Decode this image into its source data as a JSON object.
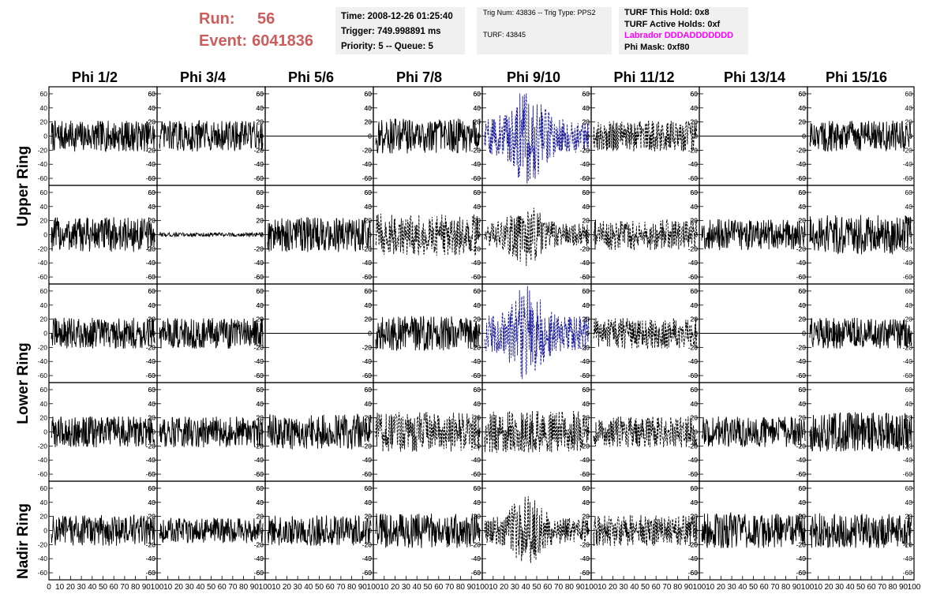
{
  "header": {
    "run_label": "Run:",
    "run_value": "56",
    "event_label": "Event:",
    "event_value": "6041836"
  },
  "info_box_1": {
    "time": "Time: 2008-12-26 01:25:40",
    "trigger": "Trigger: 749.998891 ms",
    "priority": "Priority: 5 -- Queue: 5"
  },
  "info_box_2": {
    "trig": "Trig Num: 43836 -- Trig Type: PPS2",
    "turf": "TURF: 43845"
  },
  "info_box_3": {
    "this_hold": "TURF This Hold: 0x8",
    "active_holds": "TURF Active Holds: 0xf",
    "labrador": "Labrador DDDADDDDDDD",
    "phi_mask": "Phi Mask: 0xf80"
  },
  "colors": {
    "run_text": "#cd5c5c",
    "labrador_text": "#ff00ff",
    "info_bg": "#f0f0f0",
    "trace_solid": "#000000",
    "trace_blue": "#1a1a9c"
  },
  "chart_data": {
    "type": "line",
    "grid": false,
    "columns": [
      "Phi 1/2",
      "Phi 3/4",
      "Phi 5/6",
      "Phi 7/8",
      "Phi 9/10",
      "Phi 11/12",
      "Phi 13/14",
      "Phi 15/16"
    ],
    "rows": [
      "Upper Ring",
      "Upper Ring",
      "Lower Ring",
      "Lower Ring",
      "Nadir Ring"
    ],
    "row_labels": [
      "Upper Ring",
      "Lower Ring",
      "Nadir Ring"
    ],
    "ylim": [
      -70,
      70
    ],
    "xlim": [
      0,
      100
    ],
    "y_ticks": [
      "60",
      "40",
      "20",
      "0",
      "-20",
      "-40",
      "-60"
    ],
    "x_ticks_first": [
      "0",
      "10",
      "20",
      "30",
      "40",
      "50",
      "60",
      "70",
      "80",
      "90",
      "100"
    ],
    "x_ticks_other": [
      "10",
      "20",
      "30",
      "40",
      "50",
      "60",
      "70",
      "80",
      "90",
      "100"
    ],
    "panels": [
      [
        {
          "style": "solid",
          "amp": 22
        },
        {
          "style": "solid",
          "amp": 22
        },
        {
          "style": "flat",
          "amp": 0
        },
        {
          "style": "solid",
          "amp": 25
        },
        {
          "style": "blue",
          "amp": 70
        },
        {
          "style": "dashed",
          "amp": 22
        },
        {
          "style": "flat",
          "amp": 0
        },
        {
          "style": "solid",
          "amp": 22
        }
      ],
      [
        {
          "style": "solid",
          "amp": 25
        },
        {
          "style": "small",
          "amp": 3
        },
        {
          "style": "solid",
          "amp": 25
        },
        {
          "style": "dashed",
          "amp": 30
        },
        {
          "style": "dashed",
          "amp": 45
        },
        {
          "style": "dashed",
          "amp": 22
        },
        {
          "style": "solid",
          "amp": 22
        },
        {
          "style": "solid",
          "amp": 28
        }
      ],
      [
        {
          "style": "solid",
          "amp": 22
        },
        {
          "style": "solid",
          "amp": 22
        },
        {
          "style": "flat",
          "amp": 0
        },
        {
          "style": "solid",
          "amp": 25
        },
        {
          "style": "blue",
          "amp": 70
        },
        {
          "style": "dashed",
          "amp": 22
        },
        {
          "style": "flat",
          "amp": 0
        },
        {
          "style": "solid",
          "amp": 22
        }
      ],
      [
        {
          "style": "solid",
          "amp": 22
        },
        {
          "style": "solid",
          "amp": 22
        },
        {
          "style": "solid",
          "amp": 25
        },
        {
          "style": "dashed",
          "amp": 28
        },
        {
          "style": "dashed",
          "amp": 30
        },
        {
          "style": "dashed",
          "amp": 22
        },
        {
          "style": "solid",
          "amp": 22
        },
        {
          "style": "solid",
          "amp": 28
        }
      ],
      [
        {
          "style": "solid",
          "amp": 22
        },
        {
          "style": "solid",
          "amp": 18
        },
        {
          "style": "solid",
          "amp": 22
        },
        {
          "style": "solid",
          "amp": 25
        },
        {
          "style": "dashed",
          "amp": 50
        },
        {
          "style": "dashed",
          "amp": 22
        },
        {
          "style": "solid",
          "amp": 25
        },
        {
          "style": "solid",
          "amp": 25
        }
      ]
    ]
  }
}
